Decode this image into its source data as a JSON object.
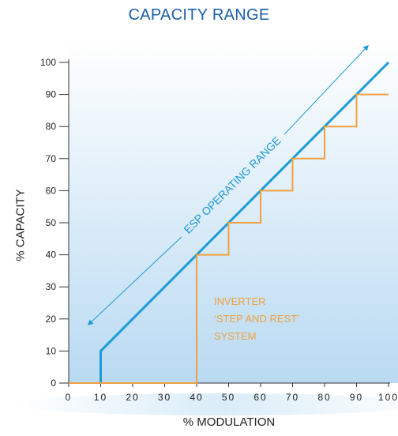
{
  "chart_data": {
    "type": "line",
    "title": "CAPACITY RANGE",
    "xlabel": "% MODULATION",
    "ylabel": "% CAPACITY",
    "xlim": [
      0,
      100
    ],
    "ylim": [
      0,
      100
    ],
    "x_ticks": [
      0,
      10,
      20,
      30,
      40,
      50,
      60,
      70,
      80,
      90,
      100
    ],
    "y_ticks": [
      0,
      10,
      20,
      30,
      40,
      50,
      60,
      70,
      80,
      90,
      100
    ],
    "grid": false,
    "series": [
      {
        "color": "#1e9ad6",
        "points": [
          [
            10,
            0
          ],
          [
            10,
            10
          ],
          [
            100,
            100
          ]
        ]
      },
      {
        "color": "#f0a040",
        "points": [
          [
            0,
            0
          ],
          [
            40,
            0
          ],
          [
            40,
            40
          ],
          [
            50,
            40
          ],
          [
            50,
            50
          ],
          [
            60,
            50
          ],
          [
            60,
            60
          ],
          [
            70,
            60
          ],
          [
            70,
            70
          ],
          [
            80,
            70
          ],
          [
            80,
            80
          ],
          [
            90,
            80
          ],
          [
            90,
            90
          ],
          [
            100,
            90
          ]
        ]
      }
    ],
    "annotations": [
      {
        "text": "ESP OPERATING RANGE",
        "color": "#1e9ad6"
      },
      {
        "lines": [
          "INVERTER",
          "‘STEP AND REST’",
          "SYSTEM"
        ],
        "color": "#f0a040"
      }
    ]
  }
}
